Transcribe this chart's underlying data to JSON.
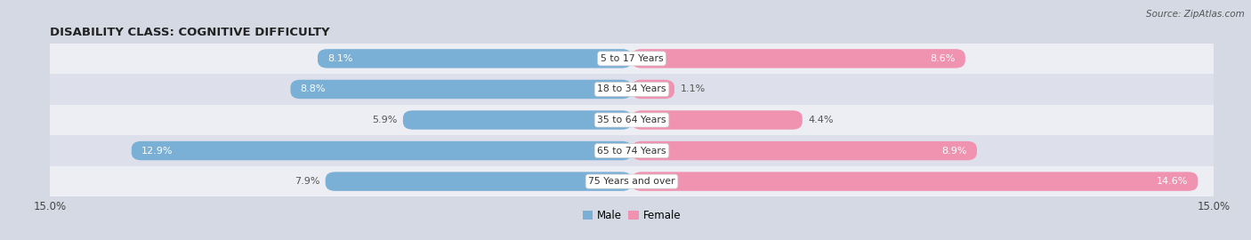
{
  "title": "DISABILITY CLASS: COGNITIVE DIFFICULTY",
  "source": "Source: ZipAtlas.com",
  "categories": [
    "5 to 17 Years",
    "18 to 34 Years",
    "35 to 64 Years",
    "65 to 74 Years",
    "75 Years and over"
  ],
  "male_values": [
    8.1,
    8.8,
    5.9,
    12.9,
    7.9
  ],
  "female_values": [
    8.6,
    1.1,
    4.4,
    8.9,
    14.6
  ],
  "male_color": "#7aafd6",
  "female_color": "#f093b0",
  "row_bg_light": "#eceef4",
  "row_bg_dark": "#dde0ea",
  "fig_bg": "#d5d9e4",
  "xlim": 15.0,
  "label_color_inside": "#ffffff",
  "label_color_outside": "#555555",
  "bar_height": 0.62,
  "title_fontsize": 9.5,
  "tick_fontsize": 8.5,
  "label_fontsize": 8.0,
  "cat_fontsize": 7.8,
  "legend_fontsize": 8.5,
  "inside_threshold_male": 8.0,
  "inside_threshold_female": 7.0
}
